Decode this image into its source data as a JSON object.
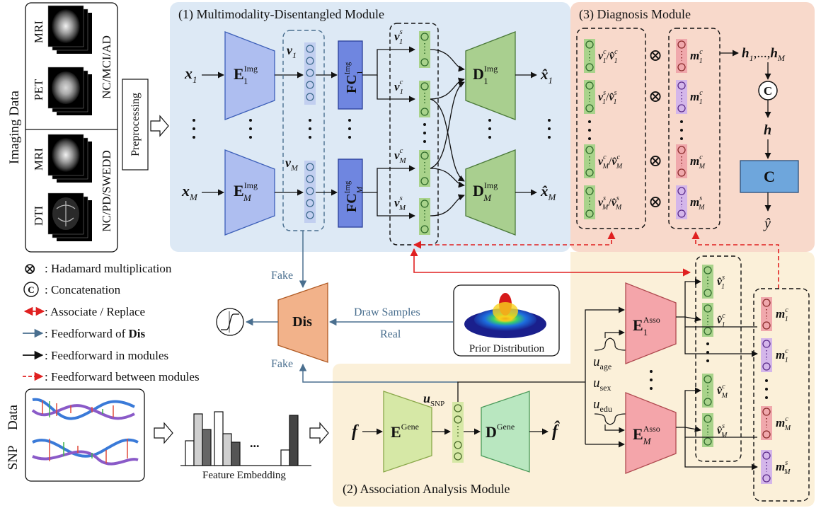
{
  "imaging": {
    "side_label": "Imaging Data",
    "group1_modalities": [
      "MRI",
      "PET"
    ],
    "group1_label": "NC/MCI/AD",
    "group2_modalities": [
      "MRI",
      "DTI"
    ],
    "group2_label": "NC/PD/SWEDD",
    "preprocessing": "Preprocessing"
  },
  "modules": {
    "m1": "(1) Multimodality-Disentangled Module",
    "m2": "(2) Association Analysis Module",
    "m3": "(3) Diagnosis Module"
  },
  "dis": {
    "label": "Dis",
    "fake_top": "Fake",
    "fake_bottom": "Fake",
    "draw_samples": "Draw Samples",
    "real": "Real",
    "prior": "Prior Distribution"
  },
  "legend": [
    {
      "symbol": "⊗",
      "text": ": Hadamard multiplication"
    },
    {
      "symbol": "C",
      "text": ": Concatenation"
    },
    {
      "symbol": "assoc",
      "text": ": Associate / Replace"
    },
    {
      "symbol": "dis",
      "text": ": Feedforward of ",
      "bold": "Dis"
    },
    {
      "symbol": "ff",
      "text": ": Feedforward in modules"
    },
    {
      "symbol": "between",
      "text": ": Feedforward between modules"
    }
  ],
  "snp": {
    "label_snp": "SNP",
    "label_data": "Data",
    "feature_embedding": "Feature Embedding",
    "ellipsis": "..."
  },
  "colors": {
    "m1_bg": "#dde9f5",
    "m2_bg": "#fbf0d9",
    "m3_bg": "#f8d9cb",
    "encoder_img": "#aebef0",
    "decoder_img": "#a9cf8f",
    "fc": "#6f86e0",
    "dis": "#f2b28a",
    "gene_enc": "#d6e8a6",
    "gene_dec": "#b9e7c0",
    "asso": "#f4a5aa",
    "classifier": "#6ea6dc",
    "node_green": "#a9d38b",
    "node_blue": "#c2cff0",
    "node_red": "#f0a8ac",
    "node_purple": "#d4b6ea",
    "arrow_blue": "#4a6f8f",
    "arrow_red": "#e02020"
  }
}
